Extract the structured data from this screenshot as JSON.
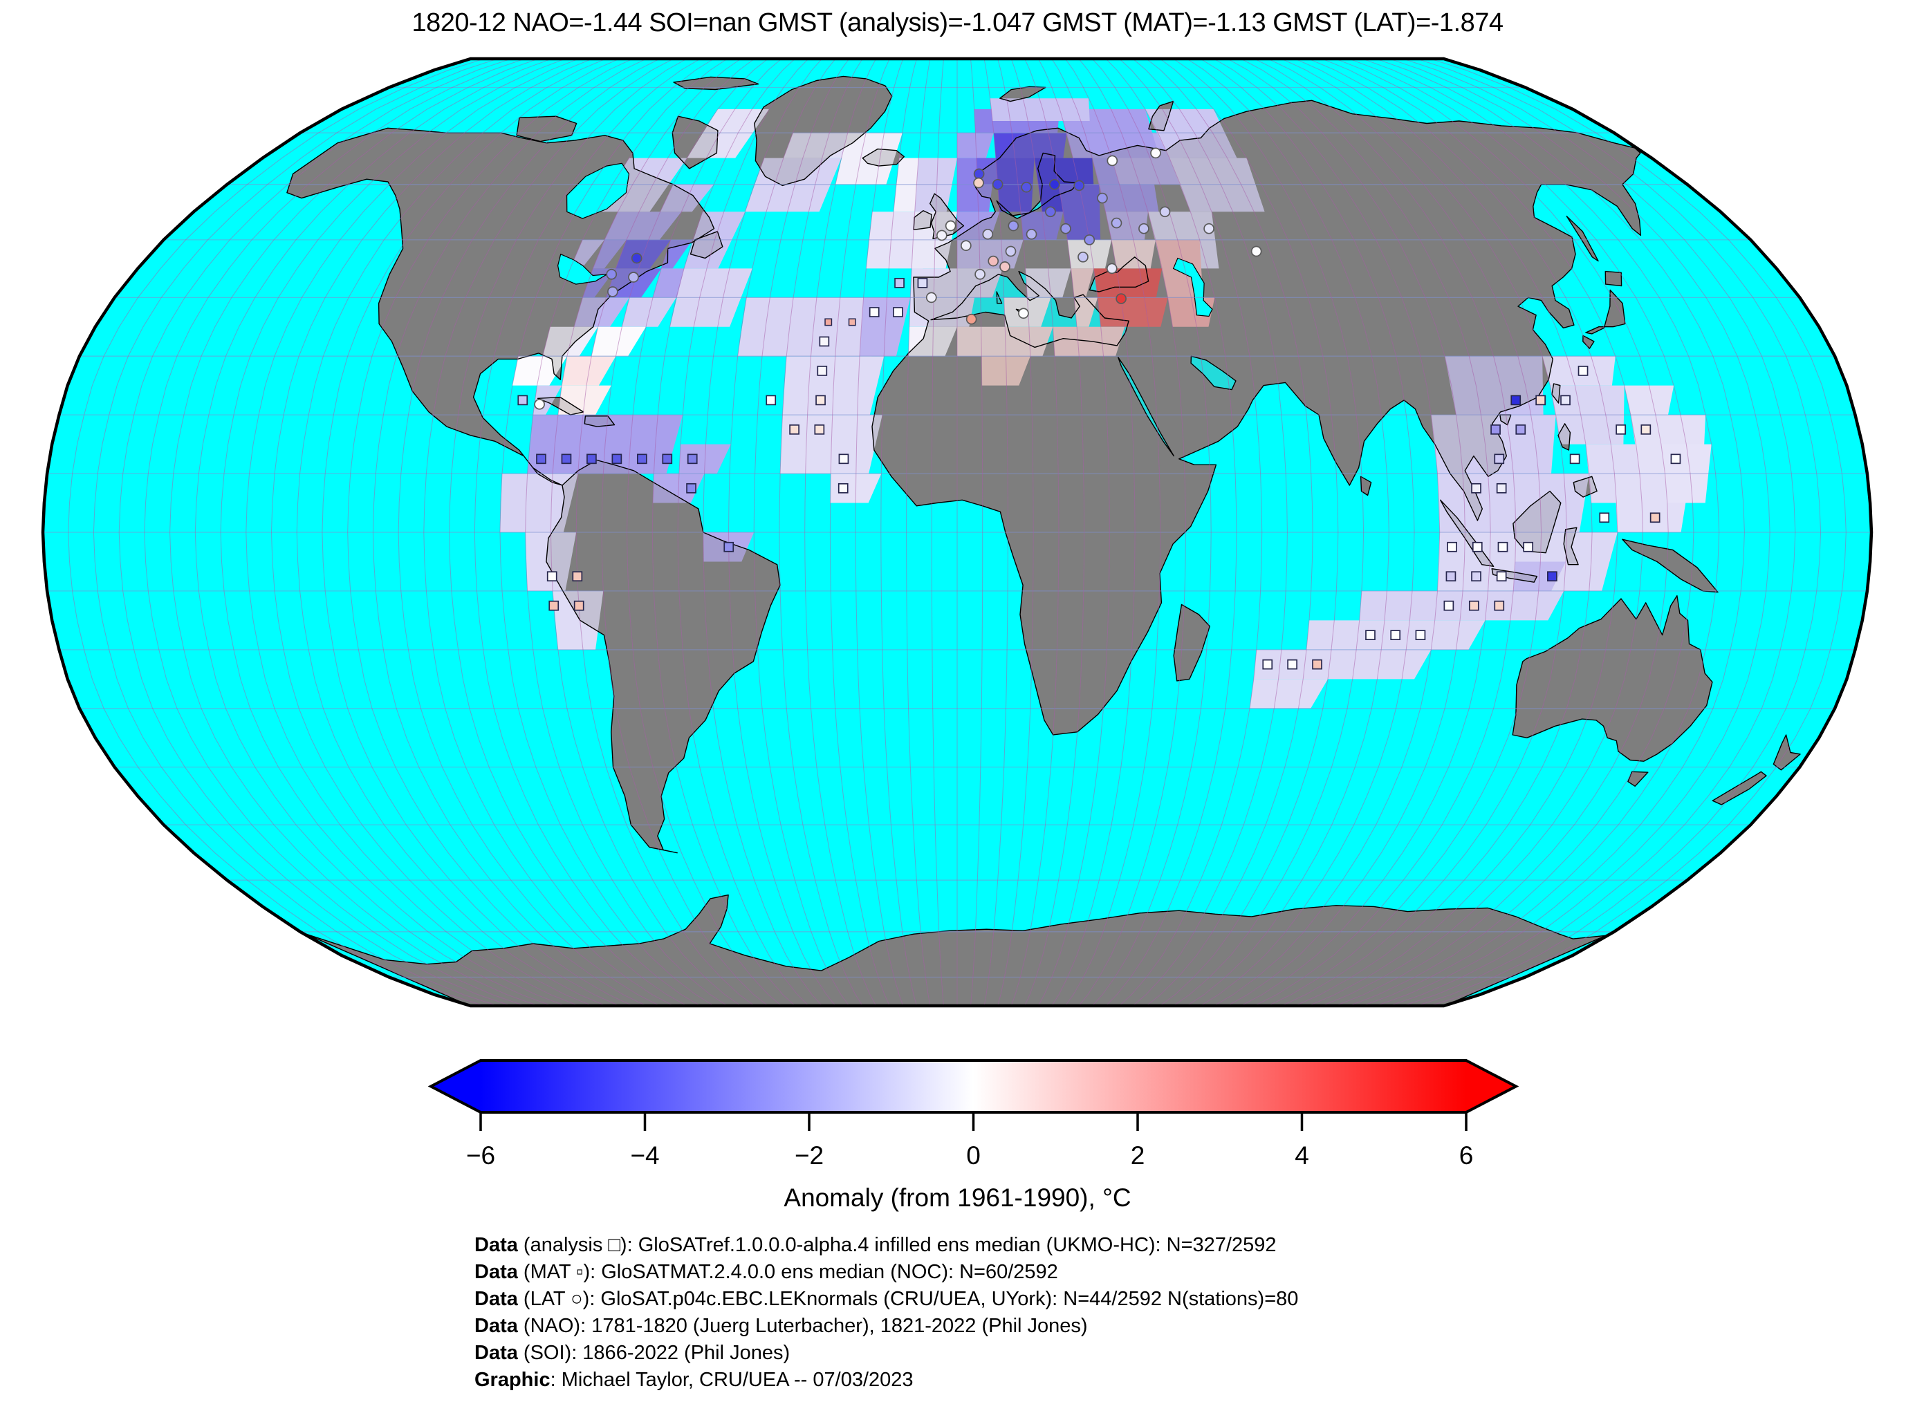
{
  "title": "1820-12 NAO=-1.44 SOI=nan GMST (analysis)=-1.047 GMST (MAT)=-1.13 GMST (LAT)=-1.874",
  "colorbar": {
    "label": "Anomaly (from 1961-1990), °C",
    "ticks": [
      "−6",
      "−4",
      "−2",
      "0",
      "2",
      "4",
      "6"
    ],
    "min": -6,
    "max": 6,
    "gradient": [
      "#0000FE",
      "#FFFFFF",
      "#FE0000"
    ]
  },
  "footer": {
    "lines": [
      {
        "bold": "Data",
        "rest": " (analysis □): GloSATref.1.0.0.0-alpha.4 infilled ens median (UKMO-HC): N=327/2592"
      },
      {
        "bold": "Data",
        "rest": " (MAT ▫): GloSATMAT.2.4.0.0 ens median (NOC): N=60/2592"
      },
      {
        "bold": "Data",
        "rest": " (LAT ○): GloSAT.p04c.EBC.LEKnormals (CRU/UEA, UYork): N=44/2592 N(stations)=80"
      },
      {
        "bold": "Data",
        "rest": " (NAO): 1781-1820 (Juerg Luterbacher), 1821-2022 (Phil Jones)"
      },
      {
        "bold": "Data",
        "rest": " (SOI): 1866-2022 (Phil Jones)"
      },
      {
        "bold": "Graphic",
        "rest": ": Michael Taylor, CRU/UEA -- 07/03/2023"
      }
    ]
  },
  "map": {
    "colors": {
      "ocean": "#00FFFF",
      "land": "#7E7E7E",
      "coast": "#000000",
      "boundary": "#000000",
      "meridian": "#A85CA8",
      "parallel": "#7D8FD0",
      "square_edge": "#26264D",
      "circle_edge": "#5A5A5A"
    },
    "cells": [
      [
        -80,
        50,
        15,
        5,
        "#ABA3EE"
      ],
      [
        -85,
        45,
        5,
        5,
        "#C3BDF1"
      ],
      [
        -80,
        45,
        5,
        5,
        "#9C94EC"
      ],
      [
        -75,
        45,
        10,
        5,
        "#5F55E3"
      ],
      [
        -65,
        45,
        5,
        5,
        "#8A82EA"
      ],
      [
        -60,
        45,
        10,
        10,
        "#C9C4F2"
      ],
      [
        -85,
        55,
        15,
        10,
        "#D3CFF3"
      ],
      [
        -70,
        55,
        10,
        5,
        "#C3BDF1"
      ],
      [
        -50,
        55,
        20,
        10,
        "#D7D3F4"
      ],
      [
        -70,
        65,
        15,
        10,
        "#E4E1F7"
      ],
      [
        -45,
        65,
        20,
        5,
        "#E2DFF7"
      ],
      [
        -30,
        60,
        15,
        10,
        "#F1EFFA"
      ],
      [
        -15,
        55,
        10,
        10,
        "#F2F0FA"
      ],
      [
        -80,
        40,
        5,
        5,
        "#8A82EA"
      ],
      [
        -75,
        40,
        10,
        5,
        "#7A71E7"
      ],
      [
        -65,
        40,
        10,
        5,
        "#ABA3EE"
      ],
      [
        -80,
        35,
        10,
        5,
        "#BDB6F0"
      ],
      [
        -70,
        35,
        10,
        5,
        "#D3CFF3"
      ],
      [
        -60,
        35,
        15,
        10,
        "#D9D5F4"
      ],
      [
        -85,
        30,
        10,
        5,
        "#F0EEF9"
      ],
      [
        -75,
        30,
        10,
        5,
        "#FBFAFD"
      ],
      [
        -90,
        25,
        10,
        5,
        "#FCFBFE"
      ],
      [
        -80,
        25,
        10,
        5,
        "#FAE4E6"
      ],
      [
        -85,
        20,
        5,
        5,
        "#CFCDF4"
      ],
      [
        -80,
        20,
        10,
        5,
        "#FAEFF0"
      ],
      [
        -85,
        10,
        30,
        10,
        "#A9A0ED"
      ],
      [
        -55,
        10,
        10,
        5,
        "#B3AAEE"
      ],
      [
        -60,
        5,
        10,
        5,
        "#B3AAEE"
      ],
      [
        -50,
        -5,
        10,
        5,
        "#B3AAEE"
      ],
      [
        -90,
        0,
        15,
        10,
        "#D9D5F4"
      ],
      [
        -85,
        -10,
        10,
        10,
        "#DCD9F5"
      ],
      [
        -80,
        -20,
        10,
        10,
        "#DFDCF6"
      ],
      [
        -45,
        30,
        30,
        10,
        "#D9D5F4"
      ],
      [
        -20,
        30,
        10,
        10,
        "#BCB4F0"
      ],
      [
        -35,
        20,
        20,
        10,
        "#DFDCF6"
      ],
      [
        -35,
        10,
        20,
        10,
        "#E0DDF6"
      ],
      [
        -25,
        5,
        10,
        5,
        "#E4E1F7"
      ],
      [
        -20,
        45,
        15,
        10,
        "#E6E3F8"
      ],
      [
        -10,
        45,
        10,
        10,
        "#EAE8F8"
      ],
      [
        0,
        45,
        15,
        5,
        "#C2BBF1"
      ],
      [
        -10,
        35,
        15,
        10,
        "#DFDCF6"
      ],
      [
        0,
        50,
        10,
        5,
        "#A59CEC"
      ],
      [
        0,
        55,
        10,
        10,
        "#8D82EA"
      ],
      [
        -10,
        55,
        10,
        10,
        "#D3CFF3"
      ],
      [
        0,
        65,
        10,
        5,
        "#A79EED"
      ],
      [
        5,
        60,
        15,
        5,
        "#6F63E5"
      ],
      [
        10,
        65,
        20,
        5,
        "#564AE0"
      ],
      [
        5,
        70,
        25,
        5,
        "#8D82EA"
      ],
      [
        10,
        55,
        10,
        10,
        "#4A3EDE"
      ],
      [
        20,
        55,
        15,
        10,
        "#352BDB"
      ],
      [
        15,
        50,
        10,
        5,
        "#7F73E7"
      ],
      [
        25,
        50,
        10,
        10,
        "#5F53E2"
      ],
      [
        35,
        55,
        15,
        10,
        "#9C92EC"
      ],
      [
        35,
        50,
        10,
        5,
        "#B7AEEF"
      ],
      [
        40,
        60,
        20,
        10,
        "#B7AEEF"
      ],
      [
        30,
        65,
        25,
        10,
        "#A89FED"
      ],
      [
        10,
        72.5,
        30,
        5,
        "#C8C3F2"
      ],
      [
        55,
        55,
        20,
        10,
        "#D3CFF3"
      ],
      [
        45,
        45,
        15,
        10,
        "#DCD9F5"
      ],
      [
        55,
        65,
        20,
        10,
        "#CCC7F2"
      ],
      [
        25,
        45,
        10,
        5,
        "#FBFAFD"
      ],
      [
        35,
        45,
        10,
        5,
        "#F8DDDE"
      ],
      [
        45,
        40,
        10,
        10,
        "#F5B9BA"
      ],
      [
        45,
        35,
        10,
        5,
        "#F6ABAB"
      ],
      [
        30,
        40,
        15,
        5,
        "#EA4C4C"
      ],
      [
        30,
        35,
        15,
        5,
        "#EE6060"
      ],
      [
        25,
        40,
        5,
        5,
        "#F9D5D6"
      ],
      [
        25,
        35,
        5,
        5,
        "#FBE3E4"
      ],
      [
        20,
        30,
        15,
        5,
        "#F7D2D3"
      ],
      [
        0,
        30,
        20,
        5,
        "#F9E0E1"
      ],
      [
        5,
        25,
        10,
        5,
        "#F5CFC8"
      ],
      [
        -10,
        30,
        10,
        5,
        "#F4F1FA"
      ],
      [
        10,
        35,
        10,
        5,
        "#F7F5FB"
      ],
      [
        0,
        40,
        10,
        5,
        "#DCD9F5"
      ],
      [
        15,
        40,
        10,
        5,
        "#E6E3F8"
      ],
      [
        100,
        20,
        20,
        10,
        "#C8C3F2"
      ],
      [
        95,
        10,
        25,
        10,
        "#D3CFF3"
      ],
      [
        120,
        15,
        15,
        10,
        "#D9D6F4"
      ],
      [
        95,
        0,
        30,
        10,
        "#D7D3F4"
      ],
      [
        95,
        -10,
        35,
        10,
        "#DCD9F5"
      ],
      [
        125,
        5,
        15,
        10,
        "#DFDCF6"
      ],
      [
        130,
        0,
        15,
        10,
        "#E2DFF7"
      ],
      [
        135,
        10,
        15,
        10,
        "#E4E1F7"
      ],
      [
        120,
        25,
        15,
        5,
        "#DFDCF6"
      ],
      [
        135,
        20,
        10,
        5,
        "#E4E1F7"
      ],
      [
        140,
        5,
        10,
        10,
        "#E6E3F8"
      ],
      [
        110,
        -10,
        10,
        5,
        "#C4BDF1"
      ],
      [
        80,
        -15,
        40,
        5,
        "#D7D3F4"
      ],
      [
        70,
        -20,
        35,
        5,
        "#DCD9F5"
      ],
      [
        60,
        -25,
        35,
        5,
        "#DCD9F5"
      ],
      [
        60,
        -30,
        15,
        5,
        "#DFDCF6"
      ]
    ],
    "markers": {
      "analysis": [
        [
          -82.5,
          12.5,
          "#6161E6"
        ],
        [
          -77.5,
          12.5,
          "#5A5AE5"
        ],
        [
          -72.5,
          12.5,
          "#5656E4"
        ],
        [
          -67.5,
          12.5,
          "#5A5AE5"
        ],
        [
          -62.5,
          12.5,
          "#6161E6"
        ],
        [
          -57.5,
          12.5,
          "#6A6AE7"
        ],
        [
          -52.5,
          12.5,
          "#8080EA"
        ],
        [
          -52.5,
          7.5,
          "#8A8AEC"
        ],
        [
          -45,
          -2.5,
          "#9090ED"
        ],
        [
          -87.5,
          22.5,
          "#C5C5F3"
        ],
        [
          -80,
          -7.5,
          "#FDFDFE"
        ],
        [
          -75,
          -7.5,
          "#F6C8BB"
        ],
        [
          -80,
          -12.5,
          "#F5C2B4"
        ],
        [
          -75,
          -12.5,
          "#F5C2B4"
        ],
        [
          -22.5,
          7.5,
          "#FBFBFD"
        ],
        [
          -27.5,
          32.5,
          "#F7F6FB"
        ],
        [
          -27.5,
          27.5,
          "#F7F6FB"
        ],
        [
          -27.5,
          22.5,
          "#F9E9E2"
        ],
        [
          -27.5,
          17.5,
          "#F9E5DC"
        ],
        [
          -22.5,
          12.5,
          "#FBFBFD"
        ],
        [
          -12.5,
          42.5,
          "#C7C7F4"
        ],
        [
          -7.5,
          42.5,
          "#DDDDF8"
        ],
        [
          -17.5,
          37.5,
          "#FDFDFE"
        ],
        [
          -12.5,
          37.5,
          "#FDFDFE"
        ],
        [
          -37.5,
          22.5,
          "#FDFDFE"
        ],
        [
          -32.5,
          17.5,
          "#F8DFD5"
        ],
        [
          112.5,
          22.5,
          "#2E2EDC"
        ],
        [
          117.5,
          22.5,
          "#F7D9CE"
        ],
        [
          122.5,
          22.5,
          "#E8E8FA"
        ],
        [
          107.5,
          17.5,
          "#9A94ED"
        ],
        [
          112.5,
          17.5,
          "#A8A2EF"
        ],
        [
          132.5,
          17.5,
          "#FDFDFE"
        ],
        [
          137.5,
          17.5,
          "#F9EAE3"
        ],
        [
          107.5,
          12.5,
          "#CDC9F3"
        ],
        [
          122.5,
          12.5,
          "#FDFDFE"
        ],
        [
          142.5,
          12.5,
          "#FDFDFE"
        ],
        [
          127.5,
          27.5,
          "#FDFDFE"
        ],
        [
          102.5,
          7.5,
          "#EFEEF9"
        ],
        [
          107.5,
          7.5,
          "#EFEEF9"
        ],
        [
          137.5,
          2.5,
          "#F6CDBF"
        ],
        [
          127.5,
          2.5,
          "#FDFDFE"
        ],
        [
          97.5,
          -2.5,
          "#FDFDFE"
        ],
        [
          102.5,
          -2.5,
          "#FDFDFE"
        ],
        [
          107.5,
          -2.5,
          "#FDFDFE"
        ],
        [
          112.5,
          -2.5,
          "#FDFDFE"
        ],
        [
          117.5,
          -7.5,
          "#3A3AE0"
        ],
        [
          97.5,
          -7.5,
          "#CDC9F3"
        ],
        [
          102.5,
          -7.5,
          "#D6D3F5"
        ],
        [
          107.5,
          -7.5,
          "#FDFDFE"
        ],
        [
          97.5,
          -12.5,
          "#FDFDFE"
        ],
        [
          102.5,
          -12.5,
          "#F7D5C9"
        ],
        [
          107.5,
          -12.5,
          "#F7D5C9"
        ],
        [
          82.5,
          -17.5,
          "#FDFDFE"
        ],
        [
          87.5,
          -17.5,
          "#FDFDFE"
        ],
        [
          92.5,
          -17.5,
          "#FDFDFE"
        ],
        [
          62.5,
          -22.5,
          "#FDFDFE"
        ],
        [
          67.5,
          -22.5,
          "#FDFDFE"
        ],
        [
          72.5,
          -22.5,
          "#F6C4B5"
        ]
      ],
      "mat": [
        [
          -27,
          35.8,
          "#F2A99E"
        ],
        [
          -22,
          35.8,
          "#F3B3A6"
        ]
      ],
      "lat_stations": [
        [
          10,
          60,
          "#4646E2"
        ],
        [
          24,
          60,
          "#3030DD"
        ],
        [
          17,
          59.5,
          "#5555E4"
        ],
        [
          30,
          59.8,
          "#4A4AE2"
        ],
        [
          40,
          64.5,
          "#FDFDFE"
        ],
        [
          52,
          66,
          "#FDFDFE"
        ],
        [
          35,
          57.5,
          "#9A9AEE"
        ],
        [
          43,
          52,
          "#C2C2F3"
        ],
        [
          37,
          53,
          "#AEAEF0"
        ],
        [
          22,
          55,
          "#6A6AE7"
        ],
        [
          13,
          52.5,
          "#9A9AEE"
        ],
        [
          17,
          51,
          "#B5B5F1"
        ],
        [
          7,
          51,
          "#D6D6F6"
        ],
        [
          2,
          49,
          "#EFEFFA"
        ],
        [
          12,
          48,
          "#CDCDF4"
        ],
        [
          8,
          46.3,
          "#F3BDBD"
        ],
        [
          10.5,
          45.3,
          "#F3C6C6"
        ],
        [
          5,
          44,
          "#DEDEF7"
        ],
        [
          -1.5,
          52.5,
          "#FDFDFE"
        ],
        [
          -3.5,
          50.8,
          "#F2F1FA"
        ],
        [
          35,
          39.8,
          "#E23A3A"
        ],
        [
          3,
          36.3,
          "#F2A08D"
        ],
        [
          14,
          37.3,
          "#FDFDFE"
        ],
        [
          5.5,
          62,
          "#4646E2"
        ],
        [
          5.3,
          60.3,
          "#F6D3C5"
        ],
        [
          -5.5,
          40,
          "#EFEEF9"
        ],
        [
          -71.2,
          46.8,
          "#3A3AE0"
        ],
        [
          -75.5,
          44,
          "#8A8AEC"
        ],
        [
          -74,
          41,
          "#A8A8EF"
        ],
        [
          -70.5,
          43.5,
          "#B5B5F1"
        ],
        [
          -84,
          21.8,
          "#FDFDFE"
        ],
        [
          30,
          50,
          "#8E8EEC"
        ],
        [
          25,
          52,
          "#9898ED"
        ],
        [
          28,
          47,
          "#C6C6F3"
        ],
        [
          34,
          45,
          "#E8E8FA"
        ],
        [
          49,
          55,
          "#D0D0F5"
        ],
        [
          58,
          52,
          "#E2E2F8"
        ],
        [
          67,
          48,
          "#FDFDFE"
        ]
      ]
    }
  },
  "chart_data": {
    "type": "heatmap",
    "subtype": "gridded-temperature-anomaly-world-map",
    "projection": "robinson",
    "date": "1820-12",
    "title": "1820-12 NAO=-1.44 SOI=nan GMST (analysis)=-1.047 GMST (MAT)=-1.13 GMST (LAT)=-1.874",
    "indices": {
      "NAO": -1.44,
      "SOI": "nan",
      "GMST_analysis": -1.047,
      "GMST_MAT": -1.13,
      "GMST_LAT": -1.874
    },
    "colorbar": {
      "label": "Anomaly (from 1961-1990), °C",
      "min": -6,
      "max": 6,
      "ticks": [
        -6,
        -4,
        -2,
        0,
        2,
        4,
        6
      ],
      "colormap": "blue-white-red"
    },
    "grid_resolution_deg": 5,
    "counts": {
      "analysis": "327/2592",
      "MAT": "60/2592",
      "LAT": "44/2592",
      "LAT_stations": 80
    },
    "notable_regions": [
      {
        "region": "Scandinavia/Baltic",
        "anomaly": "strong negative (deep blue, ~ -5)"
      },
      {
        "region": "NE North America / Gulf of St Lawrence",
        "anomaly": "negative (blue, ~ -3)"
      },
      {
        "region": "Turkey / Black Sea / Caucasus",
        "anomaly": "positive (red, ~ +3)"
      },
      {
        "region": "Caribbean",
        "anomaly": "mild negative (blue-purple, ~ -1.5)"
      },
      {
        "region": "SE Asia / Indian Ocean",
        "anomaly": "slight negative (pale lavender, ~ -0.5)"
      }
    ]
  }
}
